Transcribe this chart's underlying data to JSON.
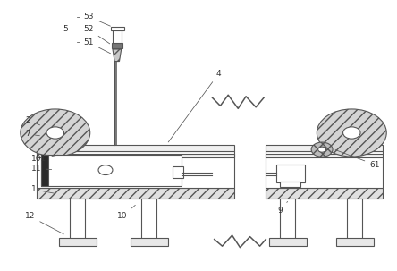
{
  "bg_color": "#ffffff",
  "line_color": "#555555",
  "label_color": "#333333",
  "fig_width": 4.44,
  "fig_height": 3.03,
  "dpi": 100
}
